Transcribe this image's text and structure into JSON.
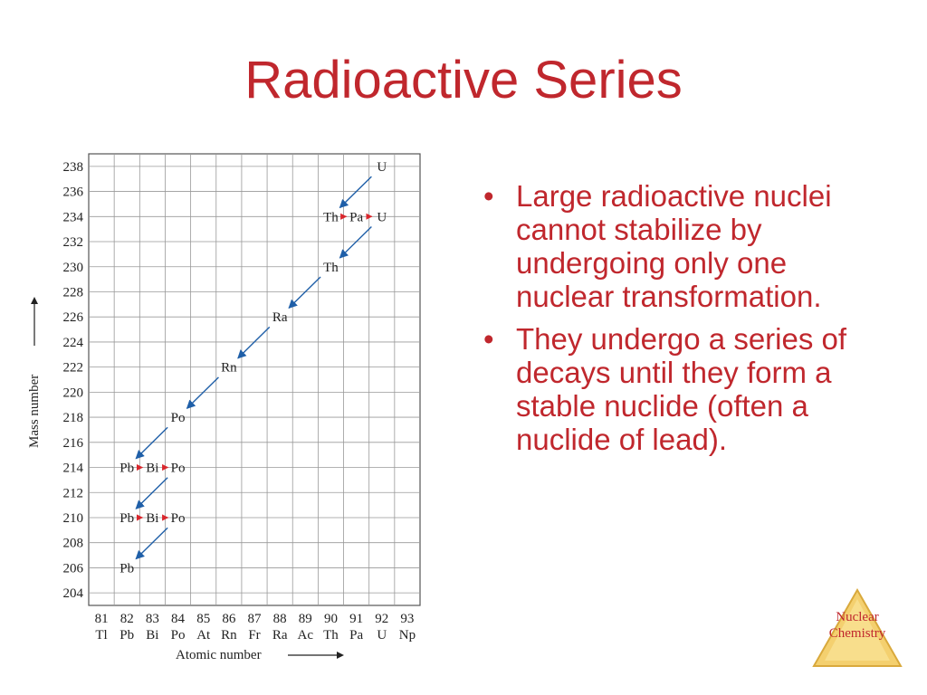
{
  "slide": {
    "title": "Radioactive Series",
    "bullets": [
      "Large radioactive nuclei cannot stabilize by undergoing only one nuclear transformation.",
      "They undergo a series of decays until they form a stable nuclide (often a nuclide of lead)."
    ],
    "badge": {
      "line1": "Nuclear",
      "line2": "Chemistry"
    },
    "colors": {
      "title": "#c0272d",
      "arrow": "#1f5fa8",
      "arrow_beta": "#d9262c",
      "badge_fill": "#f4d06f"
    }
  },
  "chart_data": {
    "type": "diagram",
    "title": "",
    "xlabel": "Atomic number",
    "ylabel": "Mass number",
    "x_ticks": [
      {
        "z": 81,
        "symbol": "Tl"
      },
      {
        "z": 82,
        "symbol": "Pb"
      },
      {
        "z": 83,
        "symbol": "Bi"
      },
      {
        "z": 84,
        "symbol": "Po"
      },
      {
        "z": 85,
        "symbol": "At"
      },
      {
        "z": 86,
        "symbol": "Rn"
      },
      {
        "z": 87,
        "symbol": "Fr"
      },
      {
        "z": 88,
        "symbol": "Ra"
      },
      {
        "z": 89,
        "symbol": "Ac"
      },
      {
        "z": 90,
        "symbol": "Th"
      },
      {
        "z": 91,
        "symbol": "Pa"
      },
      {
        "z": 92,
        "symbol": "U"
      },
      {
        "z": 93,
        "symbol": "Np"
      }
    ],
    "y_ticks": [
      204,
      206,
      208,
      210,
      212,
      214,
      216,
      218,
      220,
      222,
      224,
      226,
      228,
      230,
      232,
      234,
      236,
      238
    ],
    "xlim": [
      80.5,
      93.5
    ],
    "ylim": [
      203,
      239
    ],
    "grid": true,
    "nuclides": [
      {
        "label": "U",
        "z": 92,
        "a": 238
      },
      {
        "label": "Th",
        "z": 90,
        "a": 234
      },
      {
        "label": "Pa",
        "z": 91,
        "a": 234
      },
      {
        "label": "U",
        "z": 92,
        "a": 234
      },
      {
        "label": "Th",
        "z": 90,
        "a": 230
      },
      {
        "label": "Ra",
        "z": 88,
        "a": 226
      },
      {
        "label": "Rn",
        "z": 86,
        "a": 222
      },
      {
        "label": "Po",
        "z": 84,
        "a": 218
      },
      {
        "label": "Pb",
        "z": 82,
        "a": 214
      },
      {
        "label": "Bi",
        "z": 83,
        "a": 214
      },
      {
        "label": "Po",
        "z": 84,
        "a": 214
      },
      {
        "label": "Pb",
        "z": 82,
        "a": 210
      },
      {
        "label": "Bi",
        "z": 83,
        "a": 210
      },
      {
        "label": "Po",
        "z": 84,
        "a": 210
      },
      {
        "label": "Pb",
        "z": 82,
        "a": 206
      }
    ],
    "decays": [
      {
        "type": "alpha",
        "from": [
          92,
          238
        ],
        "to": [
          90,
          234
        ]
      },
      {
        "type": "beta",
        "from": [
          90,
          234
        ],
        "to": [
          91,
          234
        ]
      },
      {
        "type": "beta",
        "from": [
          91,
          234
        ],
        "to": [
          92,
          234
        ]
      },
      {
        "type": "alpha",
        "from": [
          92,
          234
        ],
        "to": [
          90,
          230
        ]
      },
      {
        "type": "alpha",
        "from": [
          90,
          230
        ],
        "to": [
          88,
          226
        ]
      },
      {
        "type": "alpha",
        "from": [
          88,
          226
        ],
        "to": [
          86,
          222
        ]
      },
      {
        "type": "alpha",
        "from": [
          86,
          222
        ],
        "to": [
          84,
          218
        ]
      },
      {
        "type": "alpha",
        "from": [
          84,
          218
        ],
        "to": [
          82,
          214
        ]
      },
      {
        "type": "beta",
        "from": [
          82,
          214
        ],
        "to": [
          83,
          214
        ]
      },
      {
        "type": "beta",
        "from": [
          83,
          214
        ],
        "to": [
          84,
          214
        ]
      },
      {
        "type": "alpha",
        "from": [
          84,
          214
        ],
        "to": [
          82,
          210
        ]
      },
      {
        "type": "beta",
        "from": [
          82,
          210
        ],
        "to": [
          83,
          210
        ]
      },
      {
        "type": "beta",
        "from": [
          83,
          210
        ],
        "to": [
          84,
          210
        ]
      },
      {
        "type": "alpha",
        "from": [
          84,
          210
        ],
        "to": [
          82,
          206
        ]
      }
    ]
  }
}
